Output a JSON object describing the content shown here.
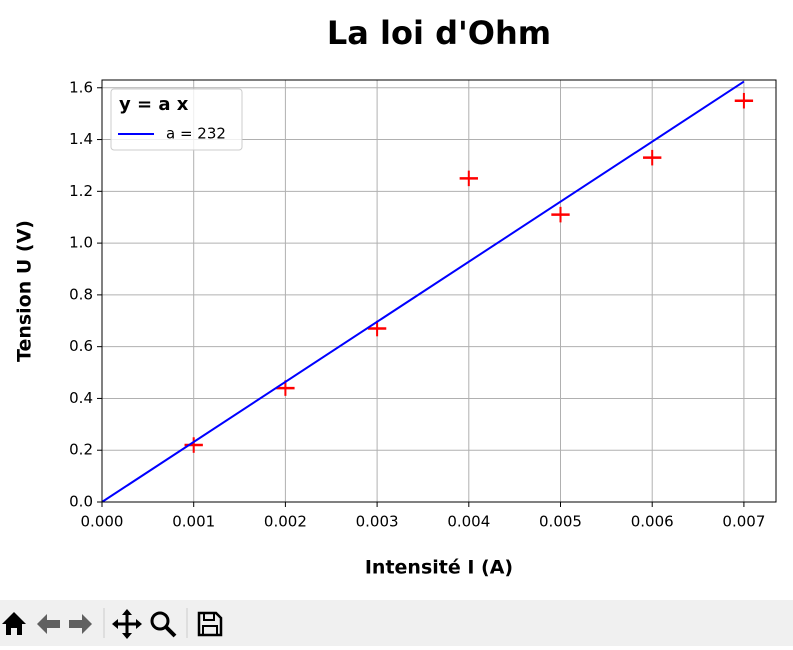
{
  "chart_data": {
    "type": "line",
    "title": "La loi d'Ohm",
    "x_label": "Intensité I (A)",
    "y_label": "Tension U (V)",
    "legend_title": "y = a x",
    "legend_position": "upper left",
    "grid": true,
    "xlim": [
      0,
      0.00735
    ],
    "ylim": [
      0,
      1.63
    ],
    "xticks": [
      {
        "value": 0,
        "label": "0.000"
      },
      {
        "value": 0.001,
        "label": "0.001"
      },
      {
        "value": 0.002,
        "label": "0.002"
      },
      {
        "value": 0.003,
        "label": "0.003"
      },
      {
        "value": 0.004,
        "label": "0.004"
      },
      {
        "value": 0.005,
        "label": "0.005"
      },
      {
        "value": 0.006,
        "label": "0.006"
      },
      {
        "value": 0.007,
        "label": "0.007"
      }
    ],
    "yticks": [
      {
        "value": 0,
        "label": "0.0"
      },
      0.2,
      0.4,
      0.6,
      0.8,
      {
        "value": 1,
        "label": "1.0"
      },
      1.2,
      1.4,
      1.6
    ],
    "series": [
      {
        "type": "errorbar",
        "color": "#ff0000",
        "x": [
          0.001,
          0.002,
          0.003,
          0.004,
          0.005,
          0.006,
          0.007
        ],
        "values": [
          0.22,
          0.44,
          0.67,
          1.25,
          1.11,
          1.33,
          1.55
        ],
        "xerr": [
          0.0001,
          0.0001,
          0.0001,
          0.0001,
          0.0001,
          0.0001,
          0.0001
        ],
        "yerr": [
          0.03,
          0.03,
          0.03,
          0.03,
          0.03,
          0.03,
          0.03
        ]
      },
      {
        "type": "line",
        "name": "a = 232",
        "color": "#0000ff",
        "x": [
          0,
          0.007
        ],
        "values": [
          0,
          1.624
        ]
      }
    ]
  }
}
